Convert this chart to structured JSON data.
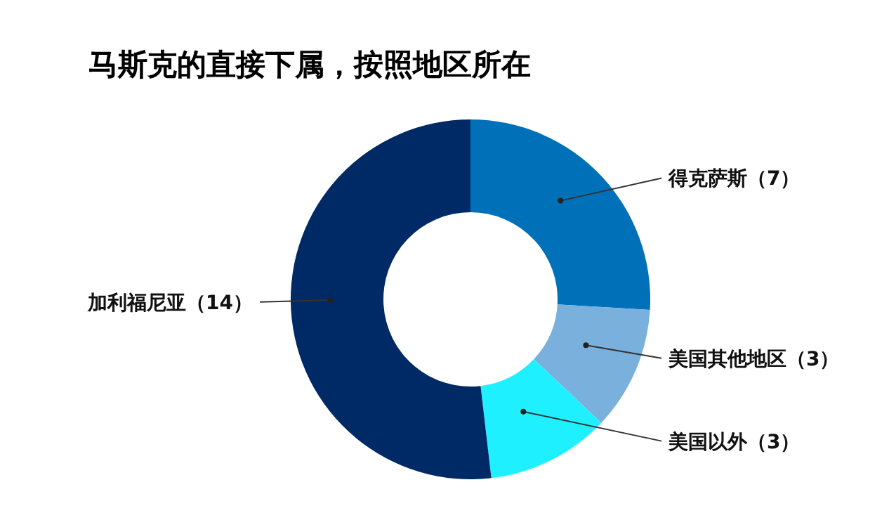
{
  "chart_data": {
    "type": "donut",
    "title": "马斯克的直接下属，按照地区所在",
    "categories": [
      "得克萨斯",
      "美国其他地区",
      "美国以外",
      "加利福尼亚"
    ],
    "values": [
      7,
      3,
      3,
      14
    ],
    "colors": [
      "#0070b8",
      "#7ab0dc",
      "#1ff0ff",
      "#002a66"
    ],
    "value_labels": [
      "（7）",
      "（3）",
      "（3）",
      "（14）"
    ]
  }
}
